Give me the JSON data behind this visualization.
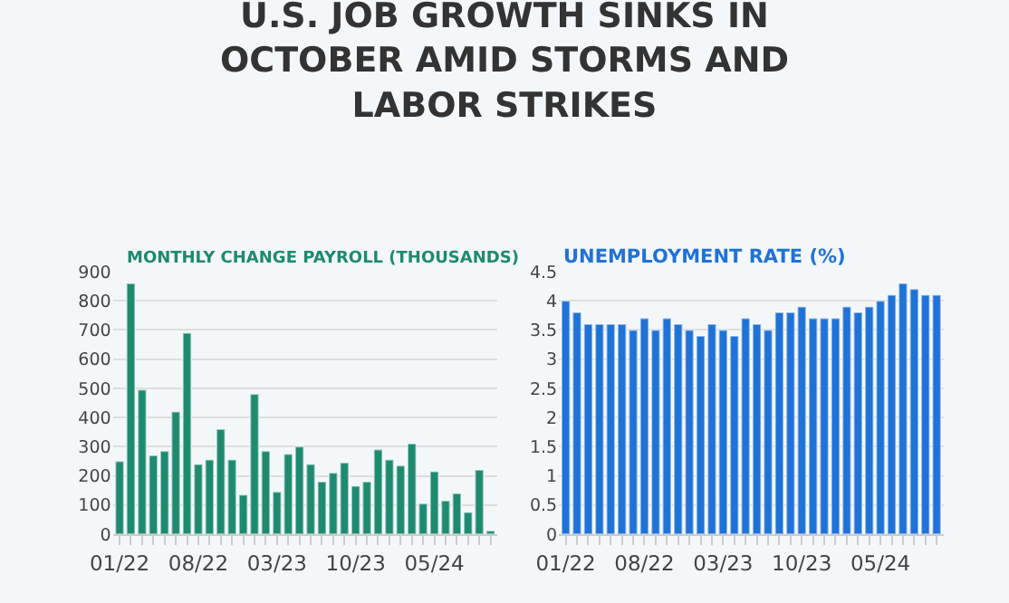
{
  "chart_data": [
    {
      "type": "bar",
      "title": "U.S. JOB GROWTH SINKS IN OCTOBER AMID STORMS AND LABOR STRIKES",
      "subtitle": "MONTHLY CHANGE PAYROLL (THOUSANDS)",
      "categories": [
        "01/22",
        null,
        null,
        null,
        null,
        null,
        null,
        "08/22",
        null,
        null,
        null,
        null,
        null,
        null,
        "03/23",
        null,
        null,
        null,
        null,
        null,
        null,
        "10/23",
        null,
        null,
        null,
        null,
        null,
        null,
        "05/24",
        null,
        null,
        null,
        null,
        null
      ],
      "series": [
        {
          "color": "#1e8a70",
          "values": [
            250,
            860,
            495,
            270,
            285,
            420,
            690,
            240,
            255,
            360,
            255,
            135,
            480,
            285,
            145,
            275,
            300,
            240,
            180,
            210,
            245,
            165,
            180,
            290,
            255,
            235,
            310,
            105,
            215,
            115,
            140,
            75,
            220,
            12
          ]
        }
      ],
      "ylim": [
        0,
        900
      ],
      "yticks": [
        0,
        100,
        200,
        300,
        400,
        500,
        600,
        700,
        800,
        900
      ],
      "grid": "y"
    },
    {
      "type": "bar",
      "title": "UNEMPLOYMENT RATE (%)",
      "categories": [
        "01/22",
        null,
        null,
        null,
        null,
        null,
        null,
        "08/22",
        null,
        null,
        null,
        null,
        null,
        null,
        "03/23",
        null,
        null,
        null,
        null,
        null,
        null,
        "10/23",
        null,
        null,
        null,
        null,
        null,
        null,
        "05/24",
        null,
        null,
        null,
        null,
        null
      ],
      "series": [
        {
          "color": "#1f72d6",
          "values": [
            4.0,
            3.8,
            3.6,
            3.6,
            3.6,
            3.6,
            3.5,
            3.7,
            3.5,
            3.7,
            3.6,
            3.5,
            3.4,
            3.6,
            3.5,
            3.4,
            3.7,
            3.6,
            3.5,
            3.8,
            3.8,
            3.9,
            3.7,
            3.7,
            3.7,
            3.9,
            3.8,
            3.9,
            4.0,
            4.1,
            4.3,
            4.2,
            4.1,
            4.1
          ]
        }
      ],
      "ylim": [
        0,
        4.5
      ],
      "yticks": [
        0,
        0.5,
        1,
        1.5,
        2,
        2.5,
        3,
        3.5,
        4,
        4.5
      ],
      "grid": "y"
    }
  ]
}
